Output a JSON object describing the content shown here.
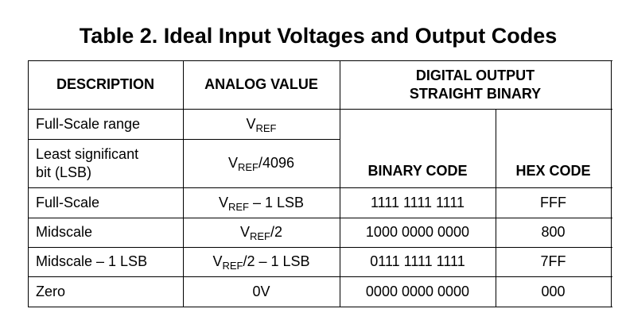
{
  "title": "Table 2. Ideal Input Voltages and Output Codes",
  "headers": {
    "description": "DESCRIPTION",
    "analog": "ANALOG VALUE",
    "digital_line1": "DIGITAL OUTPUT",
    "digital_line2": "STRAIGHT BINARY",
    "binary": "BINARY CODE",
    "hex": "HEX CODE"
  },
  "rows": [
    {
      "description": "Full-Scale range",
      "analog_v": "V",
      "analog_sub": "REF",
      "analog_rest": ""
    },
    {
      "description_line1": "Least significant",
      "description_line2": "bit (LSB)",
      "analog_v": "V",
      "analog_sub": "REF",
      "analog_rest": "/4096"
    },
    {
      "description": "Full-Scale",
      "analog_v": "V",
      "analog_sub": "REF",
      "analog_rest": " – 1 LSB",
      "binary": "1111 1111 1111",
      "hex": "FFF"
    },
    {
      "description": "Midscale",
      "analog_v": "V",
      "analog_sub": "REF",
      "analog_rest": "/2",
      "binary": "1000 0000 0000",
      "hex": "800"
    },
    {
      "description": "Midscale – 1 LSB",
      "analog_v": "V",
      "analog_sub": "REF",
      "analog_rest": "/2 – 1 LSB",
      "binary": "0111 1111 1111",
      "hex": "7FF"
    },
    {
      "description": "Zero",
      "analog": "0V",
      "binary": "0000 0000 0000",
      "hex": "000"
    }
  ]
}
